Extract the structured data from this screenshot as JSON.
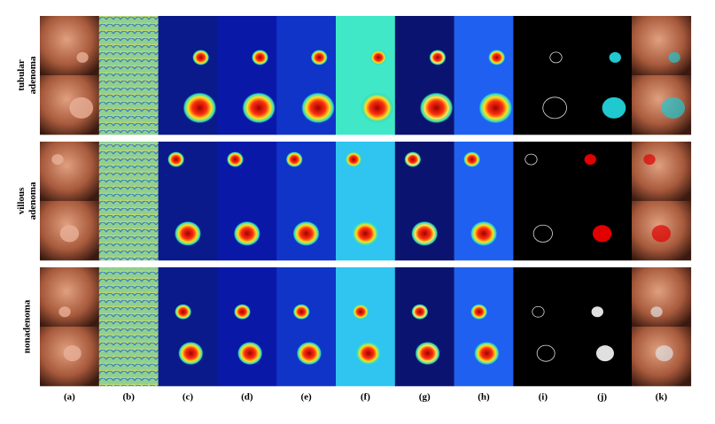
{
  "column_labels": [
    "(a)",
    "(b)",
    "(c)",
    "(d)",
    "(e)",
    "(f)",
    "(g)",
    "(h)",
    "(i)",
    "(j)",
    "(k)"
  ],
  "row_labels": [
    [
      "tubular",
      "adenoma"
    ],
    [
      "villous",
      "adenoma"
    ],
    [
      "nonadenoma"
    ]
  ]
}
